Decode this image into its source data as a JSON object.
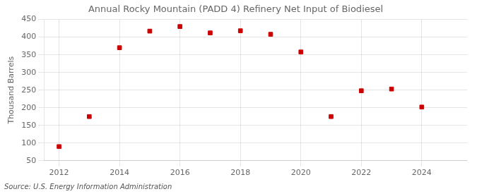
{
  "chart_data": {
    "type": "scatter",
    "title": "Annual Rocky Mountain (PADD 4) Refinery Net Input of Biodiesel",
    "ylabel": "Thousand Barrels",
    "annotations": [
      "Source: U.S. Energy Information Administration"
    ],
    "x": [
      2012,
      2013,
      2014,
      2015,
      2016,
      2017,
      2018,
      2019,
      2020,
      2021,
      2022,
      2023,
      2024
    ],
    "values": [
      90,
      175,
      370,
      417,
      430,
      412,
      418,
      408,
      358,
      175,
      248,
      253,
      202
    ],
    "color": "#cc0000",
    "marker": "square",
    "xlim": [
      2011.5,
      2025.5
    ],
    "xticks": [
      2012,
      2014,
      2016,
      2018,
      2020,
      2022,
      2024
    ],
    "ylim": [
      50,
      450
    ],
    "yticks": [
      50,
      100,
      150,
      200,
      250,
      300,
      350,
      400,
      450
    ],
    "grid": true
  }
}
